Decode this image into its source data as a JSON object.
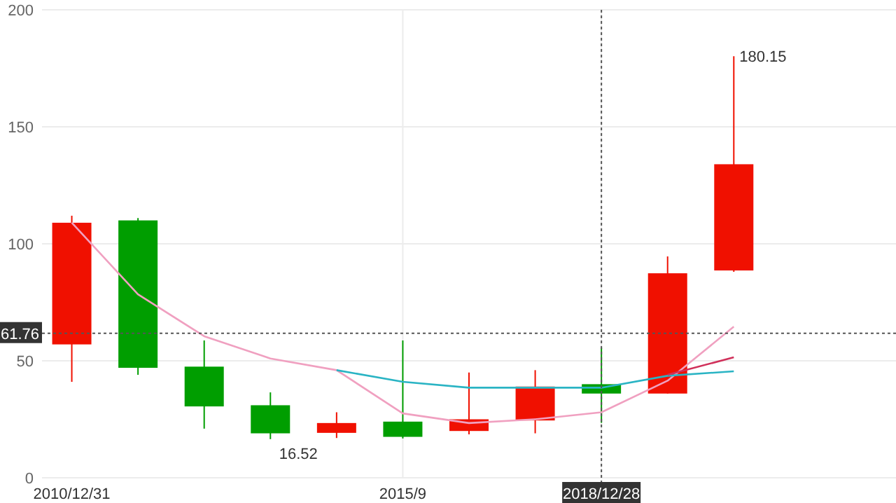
{
  "chart_data": {
    "type": "candlestick",
    "categories": [
      "2010/12/31",
      null,
      null,
      null,
      null,
      "2015/9",
      null,
      null,
      "2018/12/28",
      null,
      null
    ],
    "ohlc": [
      [
        57,
        112,
        41,
        109
      ],
      [
        110,
        111,
        44,
        47
      ],
      [
        47.5,
        58.7,
        21,
        30.5
      ],
      [
        31,
        36.5,
        16.52,
        19
      ],
      [
        19.2,
        28,
        17,
        23.4
      ],
      [
        24,
        58.7,
        16.8,
        17.5
      ],
      [
        20,
        45,
        18.6,
        25
      ],
      [
        24.5,
        46,
        19,
        39
      ],
      [
        40,
        55.7,
        23.5,
        36
      ],
      [
        36,
        94.6,
        36,
        87.4
      ],
      [
        88.6,
        180.15,
        88,
        134
      ]
    ],
    "colors": [
      "#f01000",
      "#009e00",
      "#009e00",
      "#009e00",
      "#f01000",
      "#009e00",
      "#f01000",
      "#f01000",
      "#009e00",
      "#f01000",
      "#f01000"
    ],
    "series": [
      {
        "type": "line",
        "color": "#f0a0c0",
        "values": [
          109,
          78.4,
          60.5,
          51,
          46,
          27.5,
          23.4,
          25,
          28,
          41.5,
          64.6
        ]
      },
      {
        "type": "line",
        "color": "#2ab4c4",
        "values": [
          null,
          null,
          null,
          null,
          46,
          41,
          38.5,
          38.5,
          38.5,
          43.6,
          45.5
        ]
      },
      {
        "type": "line",
        "color": "#d0305a",
        "values": [
          null,
          null,
          null,
          null,
          null,
          null,
          null,
          null,
          null,
          44,
          51.5
        ]
      }
    ],
    "ylim": [
      0,
      200
    ],
    "yticks": [
      0,
      50,
      100,
      150,
      200
    ],
    "grid": true,
    "ref_lines": [
      {
        "axis": "y",
        "value": 61.76,
        "label": "61.76",
        "line_style": "dotted"
      },
      {
        "axis": "x",
        "value": "2018/12/28",
        "line_style": "dotted"
      }
    ],
    "annotations": [
      "180.15",
      "16.52"
    ]
  }
}
